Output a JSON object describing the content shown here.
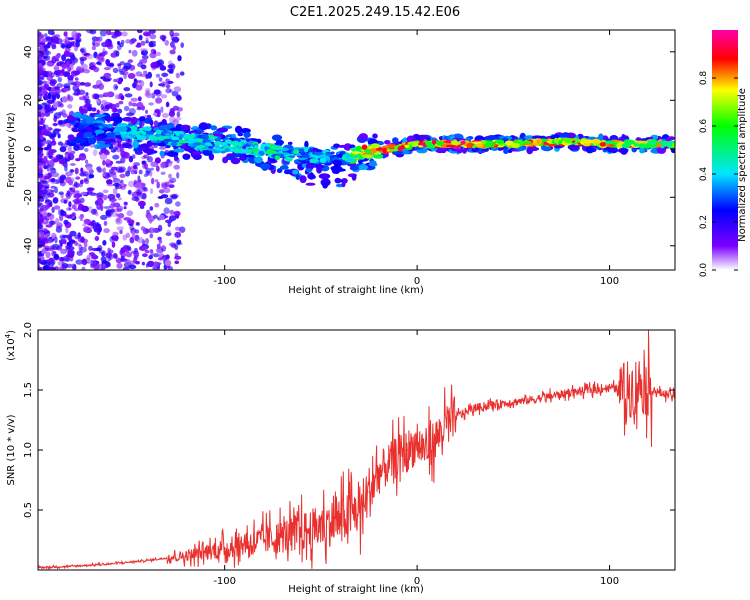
{
  "title": "C2E1.2025.249.15.42.E06",
  "colors": {
    "snr_line": "#e8312f",
    "axis": "#000000"
  },
  "chart_data": [
    {
      "type": "heatmap",
      "title": "C2E1.2025.249.15.42.E06",
      "xlabel": "Height of straight line (km)",
      "ylabel": "Frequency (Hz)",
      "xlim": [
        -197,
        134
      ],
      "ylim": [
        -50,
        49
      ],
      "xticks": [
        -100,
        0,
        100
      ],
      "yticks": [
        -40,
        -20,
        0,
        20,
        40
      ],
      "colorbar": {
        "label": "Normalized spectral amplitude",
        "range": [
          0,
          1
        ],
        "ticks": [
          "0.0",
          "0.2",
          "0.4",
          "0.6",
          "0.8"
        ],
        "tick_values": [
          0,
          0.2,
          0.4,
          0.6,
          0.8
        ]
      },
      "ridge": {
        "x": [
          -175,
          -150,
          -125,
          -100,
          -75,
          -55,
          -40,
          -30,
          -15,
          0,
          20,
          50,
          80,
          100,
          120,
          134
        ],
        "freq": [
          8,
          7,
          4,
          2,
          -1,
          -3,
          -4,
          -2,
          0,
          2,
          2,
          2,
          3,
          2,
          2,
          2
        ],
        "peak_amplitude": [
          0.3,
          0.45,
          0.5,
          0.5,
          0.55,
          0.45,
          0.4,
          0.9,
          0.95,
          0.98,
          1.0,
          1.0,
          0.95,
          0.9,
          0.85,
          0.75
        ]
      }
    },
    {
      "type": "line",
      "xlabel": "Height of straight line (km)",
      "ylabel": "SNR (10 * v/v)",
      "y_multiplier": "(x10",
      "y_exponent": "4",
      "xlim": [
        -197,
        134
      ],
      "ylim": [
        0,
        2
      ],
      "xticks": [
        -100,
        0,
        100
      ],
      "yticks": [
        0.5,
        1.0,
        1.5,
        2.0
      ],
      "ytick_labels": [
        "0.5",
        "1.0",
        "1.5",
        "2.0"
      ],
      "series": [
        {
          "name": "SNR",
          "x": [
            -197,
            -180,
            -160,
            -140,
            -120,
            -110,
            -100,
            -90,
            -80,
            -70,
            -60,
            -50,
            -40,
            -30,
            -25,
            -20,
            -10,
            -5,
            0,
            5,
            10,
            15,
            20,
            30,
            40,
            60,
            80,
            100,
            110,
            115,
            120,
            125,
            134
          ],
          "y": [
            0.02,
            0.03,
            0.05,
            0.08,
            0.12,
            0.15,
            0.18,
            0.22,
            0.25,
            0.28,
            0.32,
            0.36,
            0.42,
            0.5,
            0.65,
            0.8,
            0.95,
            1.0,
            1.05,
            1.0,
            1.1,
            1.2,
            1.28,
            1.35,
            1.38,
            1.42,
            1.48,
            1.52,
            1.5,
            1.55,
            1.52,
            1.48,
            1.45
          ]
        }
      ]
    }
  ]
}
